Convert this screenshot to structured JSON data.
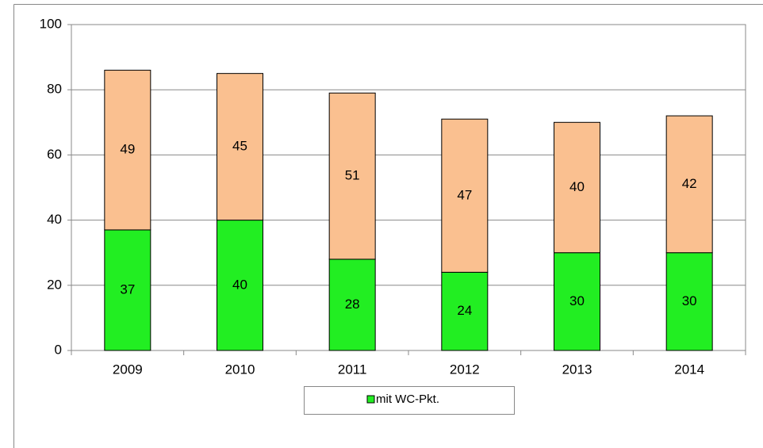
{
  "chart_data": {
    "type": "stacked_bar",
    "categories": [
      "2009",
      "2010",
      "2011",
      "2012",
      "2013",
      "2014"
    ],
    "series": [
      {
        "name": "mit WC-Pkt.",
        "color": "#22ee22",
        "values": [
          37,
          40,
          28,
          24,
          30,
          30
        ]
      },
      {
        "color": "#fac090",
        "values": [
          49,
          45,
          51,
          47,
          40,
          42
        ]
      }
    ],
    "ylim": [
      0,
      100
    ],
    "yticks": [
      0,
      20,
      40,
      60,
      80,
      100
    ],
    "grid": true,
    "legend": "bottom"
  }
}
